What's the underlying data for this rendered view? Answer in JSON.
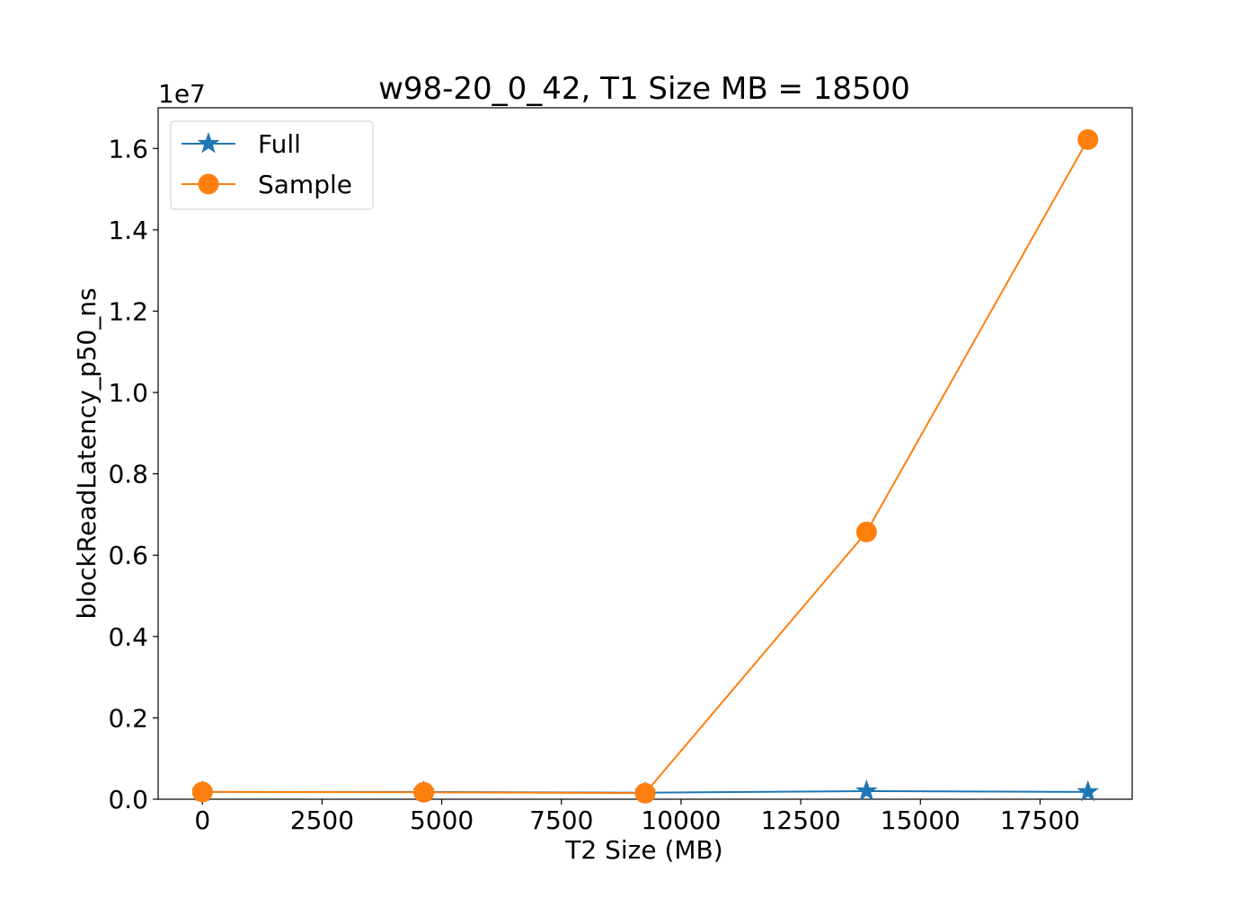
{
  "chart_data": {
    "type": "line",
    "title": "w98-20_0_42, T1 Size MB = 18500",
    "xlabel": "T2 Size (MB)",
    "ylabel": "blockReadLatency_p50_ns",
    "y_scale_label": "1e7",
    "xlim": [
      -925,
      19425
    ],
    "ylim": [
      0,
      1.7
    ],
    "xticks": [
      0,
      2500,
      5000,
      7500,
      10000,
      12500,
      15000,
      17500
    ],
    "xtick_labels": [
      "0",
      "2500",
      "5000",
      "7500",
      "10000",
      "12500",
      "15000",
      "17500"
    ],
    "yticks": [
      0.0,
      0.2,
      0.4,
      0.6,
      0.8,
      1.0,
      1.2,
      1.4,
      1.6
    ],
    "ytick_labels": [
      "0.0",
      "0.2",
      "0.4",
      "0.6",
      "0.8",
      "1.0",
      "1.2",
      "1.4",
      "1.6"
    ],
    "grid": false,
    "legend_position": "top-left",
    "series": [
      {
        "name": "Full",
        "color": "#1f77b4",
        "marker": "star",
        "x": [
          0,
          4625,
          9250,
          13875,
          18500
        ],
        "y": [
          0.018,
          0.018,
          0.016,
          0.02,
          0.018
        ]
      },
      {
        "name": "Sample",
        "color": "#ff7f0e",
        "marker": "circle",
        "x": [
          0,
          4625,
          9250,
          13875,
          18500
        ],
        "y": [
          0.018,
          0.017,
          0.015,
          0.657,
          1.622
        ]
      }
    ]
  }
}
